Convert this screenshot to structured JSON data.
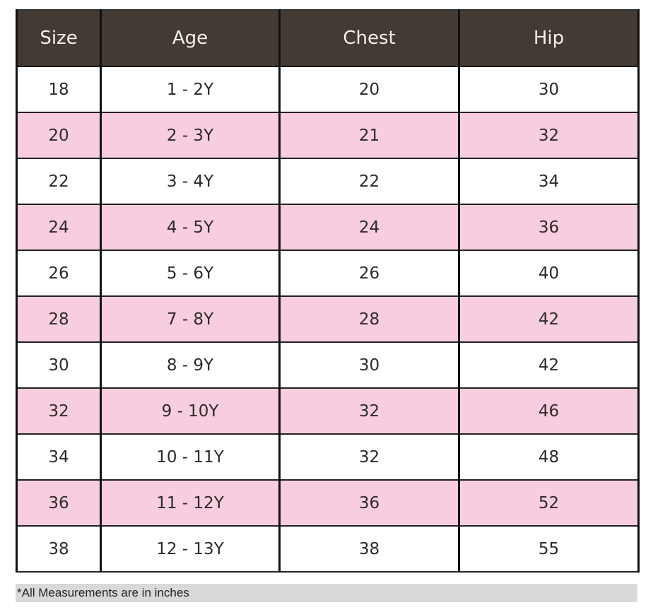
{
  "table": {
    "headers": [
      "Size",
      "Age",
      "Chest",
      "Hip"
    ],
    "rows": [
      [
        "18",
        "1 - 2Y",
        "20",
        "30"
      ],
      [
        "20",
        "2 - 3Y",
        "21",
        "32"
      ],
      [
        "22",
        "3 - 4Y",
        "22",
        "34"
      ],
      [
        "24",
        "4 - 5Y",
        "24",
        "36"
      ],
      [
        "26",
        "5 - 6Y",
        "26",
        "40"
      ],
      [
        "28",
        "7 - 8Y",
        "28",
        "42"
      ],
      [
        "30",
        "8 - 9Y",
        "30",
        "42"
      ],
      [
        "32",
        "9 - 10Y",
        "32",
        "46"
      ],
      [
        "34",
        "10 - 11Y",
        "32",
        "48"
      ],
      [
        "36",
        "11 - 12Y",
        "36",
        "52"
      ],
      [
        "38",
        "12 - 13Y",
        "38",
        "55"
      ]
    ]
  },
  "footnote": "*All Measurements are in inches",
  "colors": {
    "header": "#433a34",
    "stripe": "#f8cde0",
    "footnote_bg": "#d9d9d9"
  }
}
